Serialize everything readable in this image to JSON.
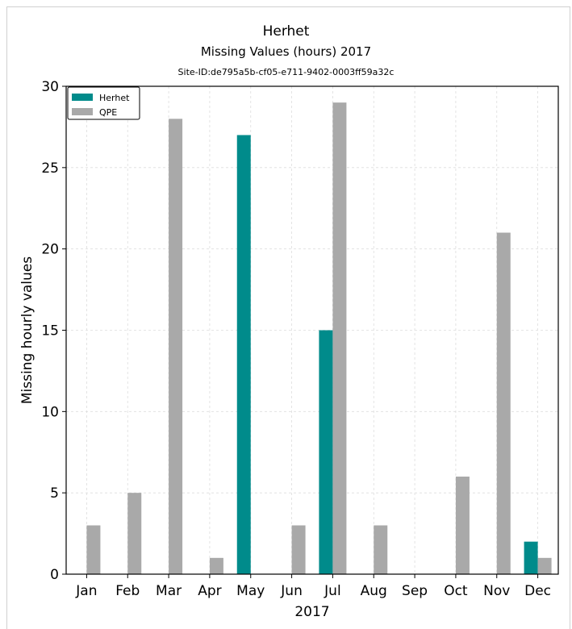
{
  "chart_data": {
    "type": "bar",
    "title": "Herhet",
    "subtitle": "Missing Values (hours) 2017",
    "site_id": "Site-ID:de795a5b-cf05-e711-9402-0003ff59a32c",
    "xlabel": "2017",
    "ylabel": "Missing hourly values",
    "ylim": [
      0,
      30
    ],
    "yticks": [
      0,
      5,
      10,
      15,
      20,
      25,
      30
    ],
    "grid": true,
    "legend_position": "top-left",
    "categories": [
      "Jan",
      "Feb",
      "Mar",
      "Apr",
      "May",
      "Jun",
      "Jul",
      "Aug",
      "Sep",
      "Oct",
      "Nov",
      "Dec"
    ],
    "series": [
      {
        "name": "Herhet",
        "color": "#008b8b",
        "values": [
          0,
          0,
          0,
          0,
          27,
          0,
          15,
          0,
          0,
          0,
          0,
          2
        ]
      },
      {
        "name": "QPE",
        "color": "#a9a9a9",
        "values": [
          3,
          5,
          28,
          1,
          0,
          3,
          29,
          3,
          0,
          6,
          21,
          1
        ]
      }
    ]
  }
}
